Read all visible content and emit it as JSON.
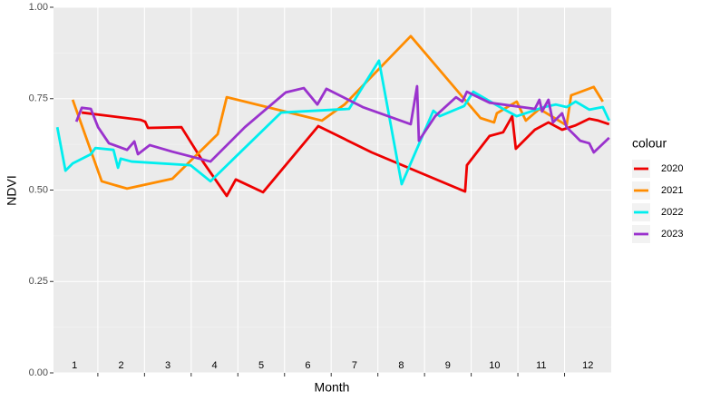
{
  "chart_data": {
    "type": "line",
    "x_label": "Month",
    "y_label": "NDVI",
    "legend_title": "colour",
    "legend": "right",
    "grid": true,
    "xlim": [
      0.55,
      12.5
    ],
    "xticks": [
      1,
      2,
      3,
      4,
      5,
      6,
      7,
      8,
      9,
      10,
      11,
      12
    ],
    "xminor": [
      1.5,
      2.5,
      3.5,
      4.5,
      5.5,
      6.5,
      7.5,
      8.5,
      9.5,
      10.5,
      11.5
    ],
    "ylim": [
      0,
      1
    ],
    "yticks": [
      {
        "value": 0,
        "label": "0.00"
      },
      {
        "value": 0.25,
        "label": "0.25"
      },
      {
        "value": 0.5,
        "label": "0.50"
      },
      {
        "value": 0.75,
        "label": "0.75"
      },
      {
        "value": 1,
        "label": "1.00"
      }
    ],
    "yminor": [
      0.125,
      0.375,
      0.625,
      0.875
    ],
    "series": [
      {
        "name": "2020",
        "color": "#ee0000",
        "x": [
          1.155,
          2.417,
          2.515,
          2.573,
          3.291,
          3.777,
          4.262,
          4.456,
          5.039,
          6.223,
          7.369,
          9.369,
          9.408,
          9.893,
          10.184,
          10.379,
          10.456,
          10.864,
          11.155,
          11.447,
          11.738,
          12.029,
          12.223,
          12.456
        ],
        "values": [
          0.712,
          0.692,
          0.687,
          0.67,
          0.672,
          0.573,
          0.484,
          0.529,
          0.494,
          0.675,
          0.603,
          0.496,
          0.568,
          0.648,
          0.658,
          0.702,
          0.613,
          0.665,
          0.685,
          0.665,
          0.677,
          0.695,
          0.69,
          0.68
        ]
      },
      {
        "name": "2021",
        "color": "#ff8c00",
        "x": [
          0.961,
          1.583,
          2.126,
          3.097,
          4.068,
          4.262,
          6.301,
          6.786,
          8.204,
          9.699,
          9.99,
          10.049,
          10.476,
          10.67,
          10.961,
          11.544,
          11.641,
          12.126,
          12.32
        ],
        "values": [
          0.747,
          0.524,
          0.504,
          0.531,
          0.653,
          0.754,
          0.69,
          0.734,
          0.921,
          0.697,
          0.685,
          0.71,
          0.742,
          0.69,
          0.722,
          0.677,
          0.759,
          0.782,
          0.742
        ]
      },
      {
        "name": "2022",
        "color": "#00eeee",
        "x": [
          0.631,
          0.806,
          0.961,
          1.35,
          1.447,
          1.835,
          1.932,
          1.99,
          2.223,
          3.485,
          3.913,
          5.427,
          6.883,
          7.524,
          8.01,
          8.689,
          8.825,
          9.35,
          9.544,
          10.184,
          10.476,
          11.058,
          11.311,
          11.544,
          11.738,
          12.029,
          12.32,
          12.456
        ],
        "values": [
          0.672,
          0.553,
          0.573,
          0.598,
          0.615,
          0.61,
          0.561,
          0.586,
          0.578,
          0.568,
          0.524,
          0.712,
          0.722,
          0.854,
          0.516,
          0.717,
          0.702,
          0.73,
          0.769,
          0.722,
          0.702,
          0.727,
          0.734,
          0.727,
          0.742,
          0.72,
          0.727,
          0.69
        ]
      },
      {
        "name": "2023",
        "color": "#9a32cd",
        "x": [
          1.039,
          1.155,
          1.35,
          1.505,
          1.738,
          2.126,
          2.282,
          2.359,
          2.612,
          3.097,
          3.913,
          4.65,
          5.524,
          5.913,
          6.204,
          6.398,
          7.175,
          8.204,
          8.34,
          8.379,
          8.728,
          9.175,
          9.311,
          9.408,
          9.893,
          10.864,
          10.961,
          11.019,
          11.155,
          11.252,
          11.447,
          11.544,
          11.835,
          12.029,
          12.126,
          12.456
        ],
        "values": [
          0.687,
          0.725,
          0.722,
          0.672,
          0.628,
          0.61,
          0.633,
          0.598,
          0.623,
          0.605,
          0.578,
          0.672,
          0.767,
          0.779,
          0.734,
          0.777,
          0.727,
          0.68,
          0.784,
          0.635,
          0.702,
          0.754,
          0.742,
          0.769,
          0.739,
          0.722,
          0.747,
          0.715,
          0.747,
          0.685,
          0.71,
          0.672,
          0.635,
          0.628,
          0.603,
          0.643
        ]
      }
    ]
  }
}
